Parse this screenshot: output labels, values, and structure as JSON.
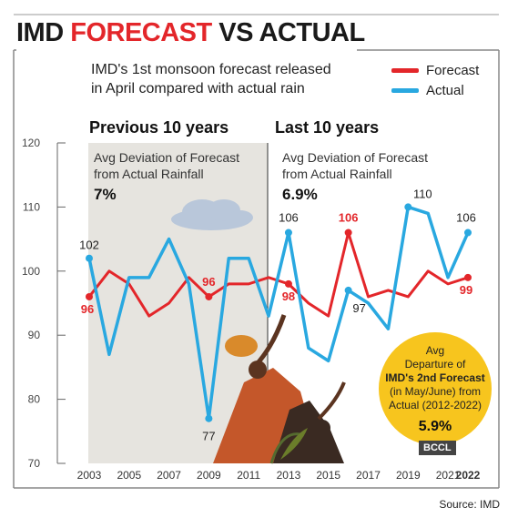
{
  "title": {
    "part1": "IMD",
    "part2": "FORECAST",
    "part3": "VS ACTUAL"
  },
  "subtitle": "IMD's 1st monsoon forecast released in April compared with actual rain",
  "legend": {
    "forecast": "Forecast",
    "actual": "Actual"
  },
  "colors": {
    "forecast": "#e3262a",
    "actual": "#29a8e0",
    "shade": "#e6e4df",
    "callout": "#f7c51e",
    "title_red": "#e3262a"
  },
  "panels": {
    "left": {
      "heading": "Previous 10 years",
      "note": [
        "Avg Deviation of Forecast",
        "from Actual Rainfall"
      ],
      "value": "7%"
    },
    "right": {
      "heading": "Last 10 years",
      "note": [
        "Avg Deviation of Forecast",
        "from Actual Rainfall"
      ],
      "value": "6.9%"
    }
  },
  "callout": {
    "lines": [
      "Avg",
      "Departure of",
      "IMD's 2nd Forecast",
      "(in May/June) from",
      "Actual (2012-2022)"
    ],
    "value": "5.9%"
  },
  "badge": "BCCL",
  "source": "Source: IMD",
  "chart_data": {
    "type": "line",
    "x": [
      2003,
      2004,
      2005,
      2006,
      2007,
      2008,
      2009,
      2010,
      2011,
      2012,
      2013,
      2014,
      2015,
      2016,
      2017,
      2018,
      2019,
      2020,
      2021,
      2022
    ],
    "x_tick_labels": [
      "2003",
      "2005",
      "2007",
      "2009",
      "2011",
      "2013",
      "2015",
      "2017",
      "2019",
      "2021",
      "2022"
    ],
    "y_ticks": [
      70,
      80,
      90,
      100,
      110,
      120
    ],
    "ylim": [
      70,
      120
    ],
    "series": [
      {
        "name": "Forecast",
        "values": [
          96,
          100,
          98,
          93,
          95,
          99,
          96,
          98,
          98,
          99,
          98,
          95,
          93,
          106,
          96,
          97,
          96,
          100,
          98,
          99
        ]
      },
      {
        "name": "Actual",
        "values": [
          102,
          87,
          99,
          99,
          105,
          98,
          77,
          102,
          102,
          93,
          106,
          88,
          86,
          97,
          95,
          91,
          110,
          109,
          99,
          106
        ]
      }
    ],
    "labels": [
      {
        "series": "Actual",
        "x": 2003,
        "text": "102"
      },
      {
        "series": "Forecast",
        "x": 2003,
        "text": "96"
      },
      {
        "series": "Forecast",
        "x": 2009,
        "text": "96"
      },
      {
        "series": "Actual",
        "x": 2009,
        "text": "77"
      },
      {
        "series": "Actual",
        "x": 2013,
        "text": "106"
      },
      {
        "series": "Forecast",
        "x": 2013,
        "text": "98"
      },
      {
        "series": "Forecast",
        "x": 2016,
        "text": "106"
      },
      {
        "series": "Actual",
        "x": 2016,
        "text": "97"
      },
      {
        "series": "Actual",
        "x": 2019,
        "text": "110"
      },
      {
        "series": "Actual",
        "x": 2022,
        "text": "106"
      },
      {
        "series": "Forecast",
        "x": 2022,
        "text": "99"
      }
    ]
  }
}
